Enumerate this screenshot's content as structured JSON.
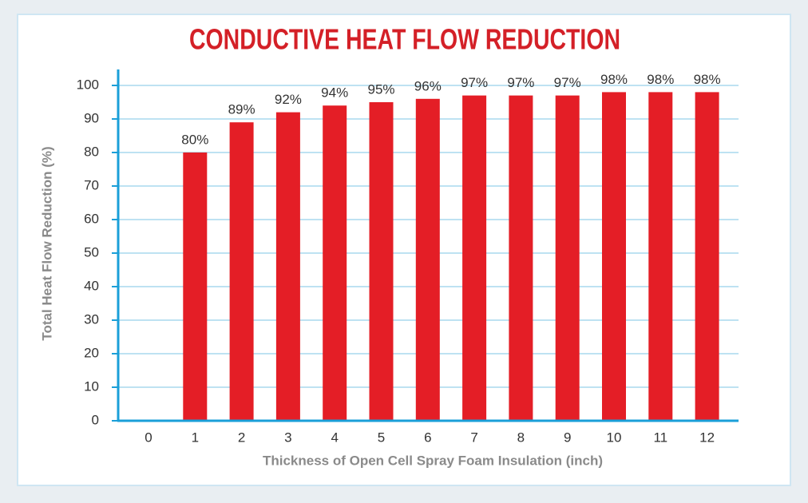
{
  "chart_data": {
    "type": "bar",
    "title": "CONDUCTIVE HEAT FLOW REDUCTION",
    "x_label": "Thickness of Open Cell Spray Foam Insulation (inch)",
    "y_label": "Total Heat Flow Reduction (%)",
    "categories": [
      "0",
      "1",
      "2",
      "3",
      "4",
      "5",
      "6",
      "7",
      "8",
      "9",
      "10",
      "11",
      "12"
    ],
    "values": [
      null,
      80,
      89,
      92,
      94,
      95,
      96,
      97,
      97,
      97,
      98,
      98,
      98
    ],
    "value_labels": [
      null,
      "80%",
      "89%",
      "92%",
      "94%",
      "95%",
      "96%",
      "97%",
      "97%",
      "97%",
      "98%",
      "98%",
      "98%"
    ],
    "color": "#e41e26",
    "ylim": [
      0,
      100
    ],
    "yticks": [
      0,
      10,
      20,
      30,
      40,
      50,
      60,
      70,
      80,
      90,
      100
    ],
    "grid": true
  }
}
